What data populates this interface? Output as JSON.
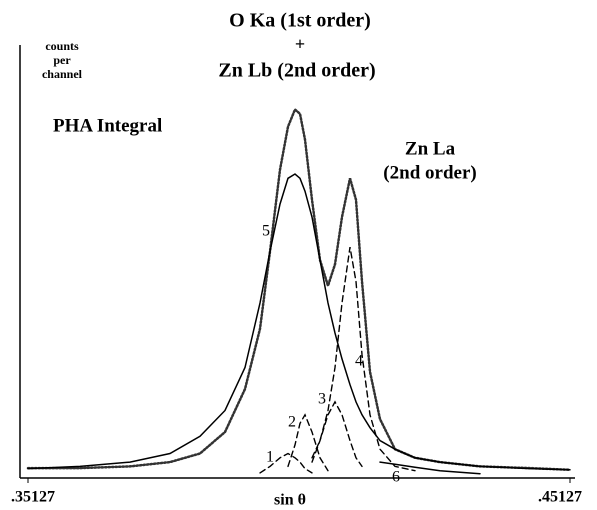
{
  "chart_data": {
    "type": "line",
    "title": [
      "O Ka (1st order)",
      "+",
      "Zn Lb (2nd order)"
    ],
    "ylabel": [
      "counts",
      "per",
      "channel"
    ],
    "xlabel": "sin θ",
    "annotations": [
      [
        "PHA Integral"
      ],
      [
        "Zn La",
        "(2nd order)"
      ]
    ],
    "x": [
      0.35127,
      0.36086,
      0.37009,
      0.37747,
      0.383,
      0.38762,
      0.39131,
      0.39407,
      0.39592,
      0.39776,
      0.39924,
      0.40053,
      0.40145,
      0.40238,
      0.40367,
      0.40514,
      0.40662,
      0.40791,
      0.4092,
      0.41068,
      0.41179,
      0.41289,
      0.41437,
      0.41621,
      0.41898,
      0.42267,
      0.42728,
      0.43466,
      0.44389,
      0.45127
    ],
    "xlim": [
      0.35127,
      0.45127
    ],
    "xticks": [
      {
        "value": 0.35127,
        "label": ".35127"
      },
      {
        "value": 0.45127,
        "label": ".45127"
      }
    ],
    "ylim": [
      0,
      100
    ],
    "series": [
      {
        "color": "#333333",
        "dash": "dotted",
        "values": [
          1.6,
          1.6,
          2,
          3,
          5,
          10,
          20,
          34,
          52,
          71,
          81,
          85,
          84,
          78,
          64,
          50,
          44,
          49,
          60,
          69,
          64,
          45,
          24,
          13,
          6,
          4,
          3,
          2,
          1.6,
          1.2
        ]
      },
      {
        "name": "5",
        "color": "#000000",
        "dash": "solid",
        "values": [
          1.5,
          2,
          3,
          5,
          9,
          15,
          25,
          40,
          52,
          63,
          69,
          70,
          69,
          66,
          60,
          50,
          40,
          33,
          27,
          21,
          17,
          14,
          11,
          8,
          6,
          4,
          3,
          2,
          1.5,
          1.2
        ]
      },
      {
        "name": "4",
        "color": "#000000",
        "dash": "dashed",
        "values": [
          null,
          null,
          null,
          null,
          null,
          null,
          null,
          null,
          null,
          null,
          null,
          null,
          null,
          null,
          4,
          8,
          15,
          25,
          40,
          53,
          45,
          28,
          14,
          6,
          2,
          1,
          null,
          null,
          null,
          null
        ]
      },
      {
        "name": "3",
        "color": "#000000",
        "dash": "dashed",
        "values": [
          null,
          null,
          null,
          null,
          null,
          null,
          null,
          null,
          null,
          null,
          null,
          null,
          null,
          null,
          3,
          8,
          14,
          17,
          14,
          8,
          4,
          2,
          null,
          null,
          null,
          null,
          null,
          null,
          null,
          null
        ]
      },
      {
        "name": "2",
        "color": "#000000",
        "dash": "dashed",
        "values": [
          null,
          null,
          null,
          null,
          null,
          null,
          null,
          null,
          null,
          null,
          2,
          7,
          12,
          14,
          10,
          4,
          1,
          null,
          null,
          null,
          null,
          null,
          null,
          null,
          null,
          null,
          null,
          null,
          null,
          null
        ]
      },
      {
        "name": "1",
        "color": "#000000",
        "dash": "dashed",
        "values": [
          null,
          null,
          null,
          null,
          null,
          null,
          null,
          0.5,
          2,
          4,
          5,
          4,
          3,
          1.5,
          0.5,
          null,
          null,
          null,
          null,
          null,
          null,
          null,
          null,
          null,
          null,
          null,
          null,
          null,
          null,
          null
        ]
      },
      {
        "name": "6",
        "color": "#000000",
        "dash": "solid",
        "values": [
          null,
          null,
          null,
          null,
          null,
          null,
          null,
          null,
          null,
          null,
          null,
          null,
          null,
          null,
          null,
          0.5,
          null,
          null,
          1.5,
          null,
          null,
          2.7,
          null,
          3,
          2.5,
          1.8,
          1,
          0.3,
          null,
          null
        ]
      }
    ]
  }
}
